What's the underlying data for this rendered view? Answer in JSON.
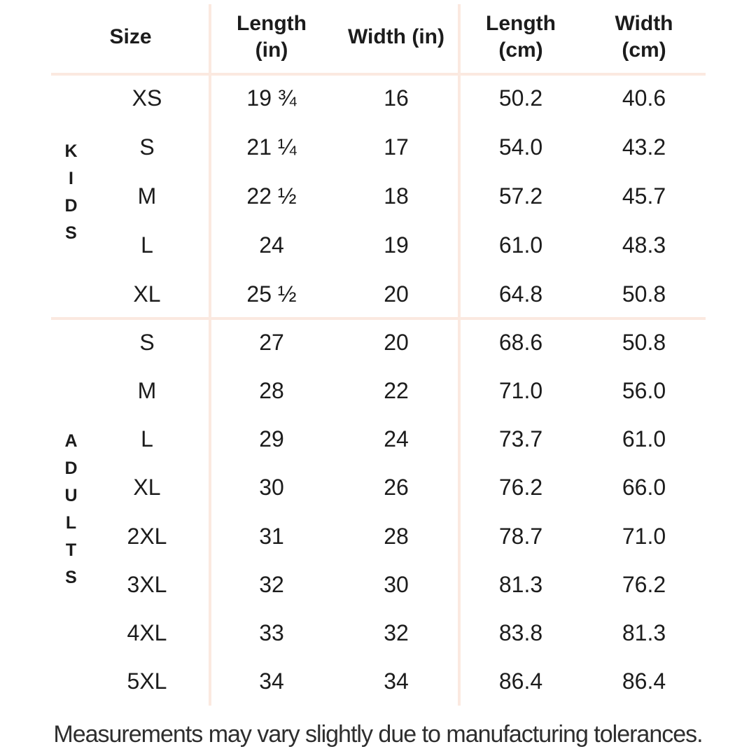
{
  "chart_data": {
    "type": "table",
    "columns": {
      "size": "Size",
      "length_in": "Length (in)",
      "width_in": "Width (in)",
      "length_cm": "Length (cm)",
      "width_cm": "Width (cm)"
    },
    "sections": [
      {
        "label": "KIDS",
        "rows": [
          {
            "size": "XS",
            "length_in": "19 ¾",
            "width_in": "16",
            "length_cm": "50.2",
            "width_cm": "40.6"
          },
          {
            "size": "S",
            "length_in": "21 ¼",
            "width_in": "17",
            "length_cm": "54.0",
            "width_cm": "43.2"
          },
          {
            "size": "M",
            "length_in": "22 ½",
            "width_in": "18",
            "length_cm": "57.2",
            "width_cm": "45.7"
          },
          {
            "size": "L",
            "length_in": "24",
            "width_in": "19",
            "length_cm": "61.0",
            "width_cm": "48.3"
          },
          {
            "size": "XL",
            "length_in": "25 ½",
            "width_in": "20",
            "length_cm": "64.8",
            "width_cm": "50.8"
          }
        ]
      },
      {
        "label": "ADULTS",
        "rows": [
          {
            "size": "S",
            "length_in": "27",
            "width_in": "20",
            "length_cm": "68.6",
            "width_cm": "50.8"
          },
          {
            "size": "M",
            "length_in": "28",
            "width_in": "22",
            "length_cm": "71.0",
            "width_cm": "56.0"
          },
          {
            "size": "L",
            "length_in": "29",
            "width_in": "24",
            "length_cm": "73.7",
            "width_cm": "61.0"
          },
          {
            "size": "XL",
            "length_in": "30",
            "width_in": "26",
            "length_cm": "76.2",
            "width_cm": "66.0"
          },
          {
            "size": "2XL",
            "length_in": "31",
            "width_in": "28",
            "length_cm": "78.7",
            "width_cm": "71.0"
          },
          {
            "size": "3XL",
            "length_in": "32",
            "width_in": "30",
            "length_cm": "81.3",
            "width_cm": "76.2"
          },
          {
            "size": "4XL",
            "length_in": "33",
            "width_in": "32",
            "length_cm": "83.8",
            "width_cm": "81.3"
          },
          {
            "size": "5XL",
            "length_in": "34",
            "width_in": "34",
            "length_cm": "86.4",
            "width_cm": "86.4"
          }
        ]
      }
    ]
  },
  "footer": {
    "note": "Measurements may vary slightly due to manufacturing tolerances."
  },
  "colors": {
    "background": "#ffffff",
    "divider": "#fbe9e0",
    "text": "#1c1c1c",
    "footer_text": "#2e2e2e"
  }
}
